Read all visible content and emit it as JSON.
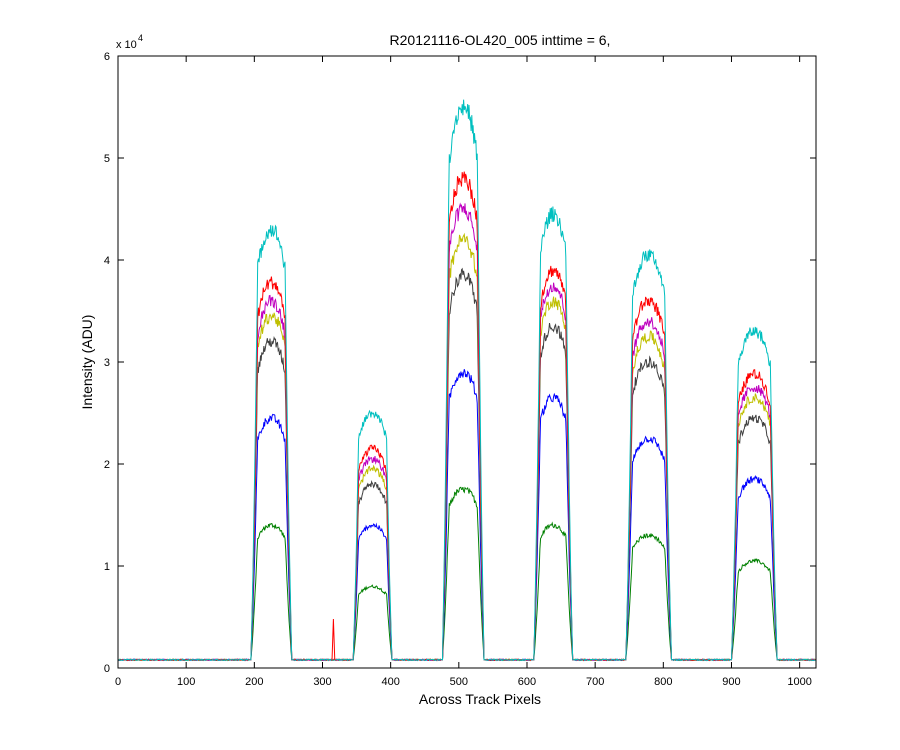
{
  "chart_data": {
    "type": "line",
    "title": "R20121116-OL420_005 inttime = 6,",
    "xlabel": "Across Track Pixels",
    "ylabel": "Intensity (ADU)",
    "y_multiplier_base": "x 10",
    "y_multiplier_exp": "4",
    "xlim": [
      0,
      1024
    ],
    "ylim": [
      0,
      60000
    ],
    "x_ticks": [
      0,
      100,
      200,
      300,
      400,
      500,
      600,
      700,
      800,
      900,
      1000
    ],
    "y_ticks": [
      0,
      10000,
      20000,
      30000,
      40000,
      50000,
      60000
    ],
    "x_tick_labels": [
      "0",
      "100",
      "200",
      "300",
      "400",
      "500",
      "600",
      "700",
      "800",
      "900",
      "1000"
    ],
    "y_tick_labels": [
      "0",
      "1",
      "2",
      "3",
      "4",
      "5",
      "6"
    ],
    "grid": false,
    "baseline": 800,
    "blocks": [
      {
        "start": 195,
        "end": 255,
        "rise": 10
      },
      {
        "start": 345,
        "end": 402,
        "rise": 8
      },
      {
        "start": 476,
        "end": 537,
        "rise": 10
      },
      {
        "start": 610,
        "end": 667,
        "rise": 10
      },
      {
        "start": 745,
        "end": 812,
        "rise": 10
      },
      {
        "start": 900,
        "end": 967,
        "rise": 10
      }
    ],
    "spike": {
      "x": 316,
      "y": 4800,
      "color": "#ff0000"
    },
    "series": [
      {
        "color": "#00bfbf",
        "peaks": [
          43000,
          25000,
          55000,
          44500,
          40500,
          33000
        ]
      },
      {
        "color": "#ff0000",
        "peaks": [
          37800,
          21500,
          48000,
          39000,
          36000,
          28800
        ]
      },
      {
        "color": "#bf00bf",
        "peaks": [
          36000,
          20500,
          45000,
          37500,
          34000,
          27500
        ]
      },
      {
        "color": "#bfbf00",
        "peaks": [
          34500,
          19500,
          42000,
          36000,
          32500,
          26500
        ]
      },
      {
        "color": "#404040",
        "peaks": [
          32000,
          18000,
          38500,
          33500,
          30000,
          24500
        ]
      },
      {
        "color": "#0000ff",
        "peaks": [
          24500,
          14000,
          29000,
          26500,
          22500,
          18500
        ]
      },
      {
        "color": "#008000",
        "peaks": [
          14000,
          8000,
          17500,
          14000,
          13000,
          10500
        ]
      }
    ]
  }
}
